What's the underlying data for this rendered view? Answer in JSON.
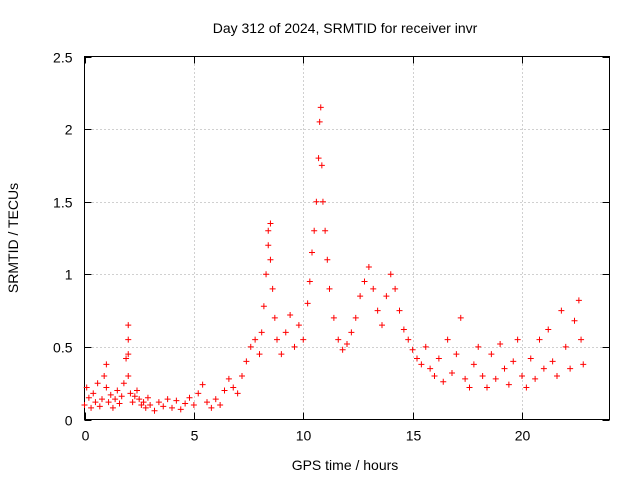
{
  "chart_data": {
    "type": "scatter",
    "title": "Day 312 of 2024, SRMTID for receiver invr",
    "xlabel": "GPS time / hours",
    "ylabel": "SRMTID / TECUs",
    "xlim": [
      0,
      24
    ],
    "ylim": [
      0,
      2.5
    ],
    "xticks": [
      0,
      5,
      10,
      15,
      20
    ],
    "xtick_labels": [
      "0",
      "5",
      "10",
      "15",
      "20"
    ],
    "yticks": [
      0,
      0.5,
      1,
      1.5,
      2,
      2.5
    ],
    "ytick_labels": [
      "0",
      "0.5",
      "1",
      "1.5",
      "2",
      "2.5"
    ],
    "grid": true,
    "marker": "+",
    "series": [
      {
        "name": "SRMTID",
        "color": "#ff0000",
        "points": [
          [
            0.0,
            0.1
          ],
          [
            0.1,
            0.22
          ],
          [
            0.2,
            0.15
          ],
          [
            0.3,
            0.08
          ],
          [
            0.4,
            0.18
          ],
          [
            0.5,
            0.12
          ],
          [
            0.6,
            0.25
          ],
          [
            0.7,
            0.09
          ],
          [
            0.8,
            0.14
          ],
          [
            0.9,
            0.3
          ],
          [
            1.0,
            0.38
          ],
          [
            1.0,
            0.22
          ],
          [
            1.1,
            0.12
          ],
          [
            1.2,
            0.17
          ],
          [
            1.3,
            0.08
          ],
          [
            1.4,
            0.14
          ],
          [
            1.5,
            0.2
          ],
          [
            1.6,
            0.11
          ],
          [
            1.7,
            0.16
          ],
          [
            1.8,
            0.25
          ],
          [
            1.9,
            0.42
          ],
          [
            2.0,
            0.65
          ],
          [
            2.0,
            0.55
          ],
          [
            2.0,
            0.45
          ],
          [
            2.0,
            0.3
          ],
          [
            2.1,
            0.18
          ],
          [
            2.2,
            0.12
          ],
          [
            2.3,
            0.16
          ],
          [
            2.4,
            0.2
          ],
          [
            2.5,
            0.14
          ],
          [
            2.6,
            0.1
          ],
          [
            2.7,
            0.12
          ],
          [
            2.8,
            0.08
          ],
          [
            2.9,
            0.15
          ],
          [
            3.0,
            0.1
          ],
          [
            3.2,
            0.06
          ],
          [
            3.4,
            0.12
          ],
          [
            3.6,
            0.09
          ],
          [
            3.8,
            0.14
          ],
          [
            4.0,
            0.08
          ],
          [
            4.2,
            0.13
          ],
          [
            4.4,
            0.07
          ],
          [
            4.6,
            0.11
          ],
          [
            4.8,
            0.15
          ],
          [
            5.0,
            0.1
          ],
          [
            5.2,
            0.18
          ],
          [
            5.4,
            0.24
          ],
          [
            5.6,
            0.12
          ],
          [
            5.8,
            0.08
          ],
          [
            6.0,
            0.14
          ],
          [
            6.2,
            0.1
          ],
          [
            6.4,
            0.2
          ],
          [
            6.6,
            0.28
          ],
          [
            6.8,
            0.22
          ],
          [
            7.0,
            0.18
          ],
          [
            7.2,
            0.3
          ],
          [
            7.4,
            0.4
          ],
          [
            7.6,
            0.5
          ],
          [
            7.8,
            0.55
          ],
          [
            8.0,
            0.45
          ],
          [
            8.1,
            0.6
          ],
          [
            8.2,
            0.78
          ],
          [
            8.3,
            1.0
          ],
          [
            8.4,
            1.3
          ],
          [
            8.4,
            1.2
          ],
          [
            8.5,
            1.35
          ],
          [
            8.5,
            1.1
          ],
          [
            8.6,
            0.9
          ],
          [
            8.7,
            0.7
          ],
          [
            8.8,
            0.55
          ],
          [
            9.0,
            0.45
          ],
          [
            9.2,
            0.6
          ],
          [
            9.4,
            0.72
          ],
          [
            9.6,
            0.5
          ],
          [
            9.8,
            0.65
          ],
          [
            10.0,
            0.55
          ],
          [
            10.2,
            0.8
          ],
          [
            10.3,
            0.95
          ],
          [
            10.4,
            1.15
          ],
          [
            10.5,
            1.3
          ],
          [
            10.6,
            1.5
          ],
          [
            10.7,
            1.8
          ],
          [
            10.75,
            2.05
          ],
          [
            10.8,
            2.15
          ],
          [
            10.85,
            1.75
          ],
          [
            10.9,
            1.5
          ],
          [
            11.0,
            1.3
          ],
          [
            11.1,
            1.1
          ],
          [
            11.2,
            0.9
          ],
          [
            11.4,
            0.7
          ],
          [
            11.6,
            0.55
          ],
          [
            11.8,
            0.48
          ],
          [
            12.0,
            0.52
          ],
          [
            12.2,
            0.6
          ],
          [
            12.4,
            0.7
          ],
          [
            12.6,
            0.85
          ],
          [
            12.8,
            0.95
          ],
          [
            13.0,
            1.05
          ],
          [
            13.2,
            0.9
          ],
          [
            13.4,
            0.75
          ],
          [
            13.6,
            0.65
          ],
          [
            13.8,
            0.85
          ],
          [
            14.0,
            1.0
          ],
          [
            14.2,
            0.9
          ],
          [
            14.4,
            0.75
          ],
          [
            14.6,
            0.62
          ],
          [
            14.8,
            0.55
          ],
          [
            15.0,
            0.48
          ],
          [
            15.2,
            0.42
          ],
          [
            15.4,
            0.38
          ],
          [
            15.6,
            0.5
          ],
          [
            15.8,
            0.35
          ],
          [
            16.0,
            0.3
          ],
          [
            16.2,
            0.42
          ],
          [
            16.4,
            0.26
          ],
          [
            16.6,
            0.55
          ],
          [
            16.8,
            0.32
          ],
          [
            17.0,
            0.45
          ],
          [
            17.2,
            0.7
          ],
          [
            17.4,
            0.28
          ],
          [
            17.6,
            0.22
          ],
          [
            17.8,
            0.38
          ],
          [
            18.0,
            0.5
          ],
          [
            18.2,
            0.3
          ],
          [
            18.4,
            0.22
          ],
          [
            18.6,
            0.45
          ],
          [
            18.8,
            0.28
          ],
          [
            19.0,
            0.52
          ],
          [
            19.2,
            0.35
          ],
          [
            19.4,
            0.24
          ],
          [
            19.6,
            0.4
          ],
          [
            19.8,
            0.55
          ],
          [
            20.0,
            0.3
          ],
          [
            20.2,
            0.22
          ],
          [
            20.4,
            0.42
          ],
          [
            20.6,
            0.28
          ],
          [
            20.8,
            0.55
          ],
          [
            21.0,
            0.35
          ],
          [
            21.2,
            0.62
          ],
          [
            21.4,
            0.4
          ],
          [
            21.6,
            0.3
          ],
          [
            21.8,
            0.75
          ],
          [
            22.0,
            0.5
          ],
          [
            22.2,
            0.35
          ],
          [
            22.4,
            0.68
          ],
          [
            22.6,
            0.82
          ],
          [
            22.7,
            0.55
          ],
          [
            22.8,
            0.38
          ]
        ]
      }
    ]
  }
}
